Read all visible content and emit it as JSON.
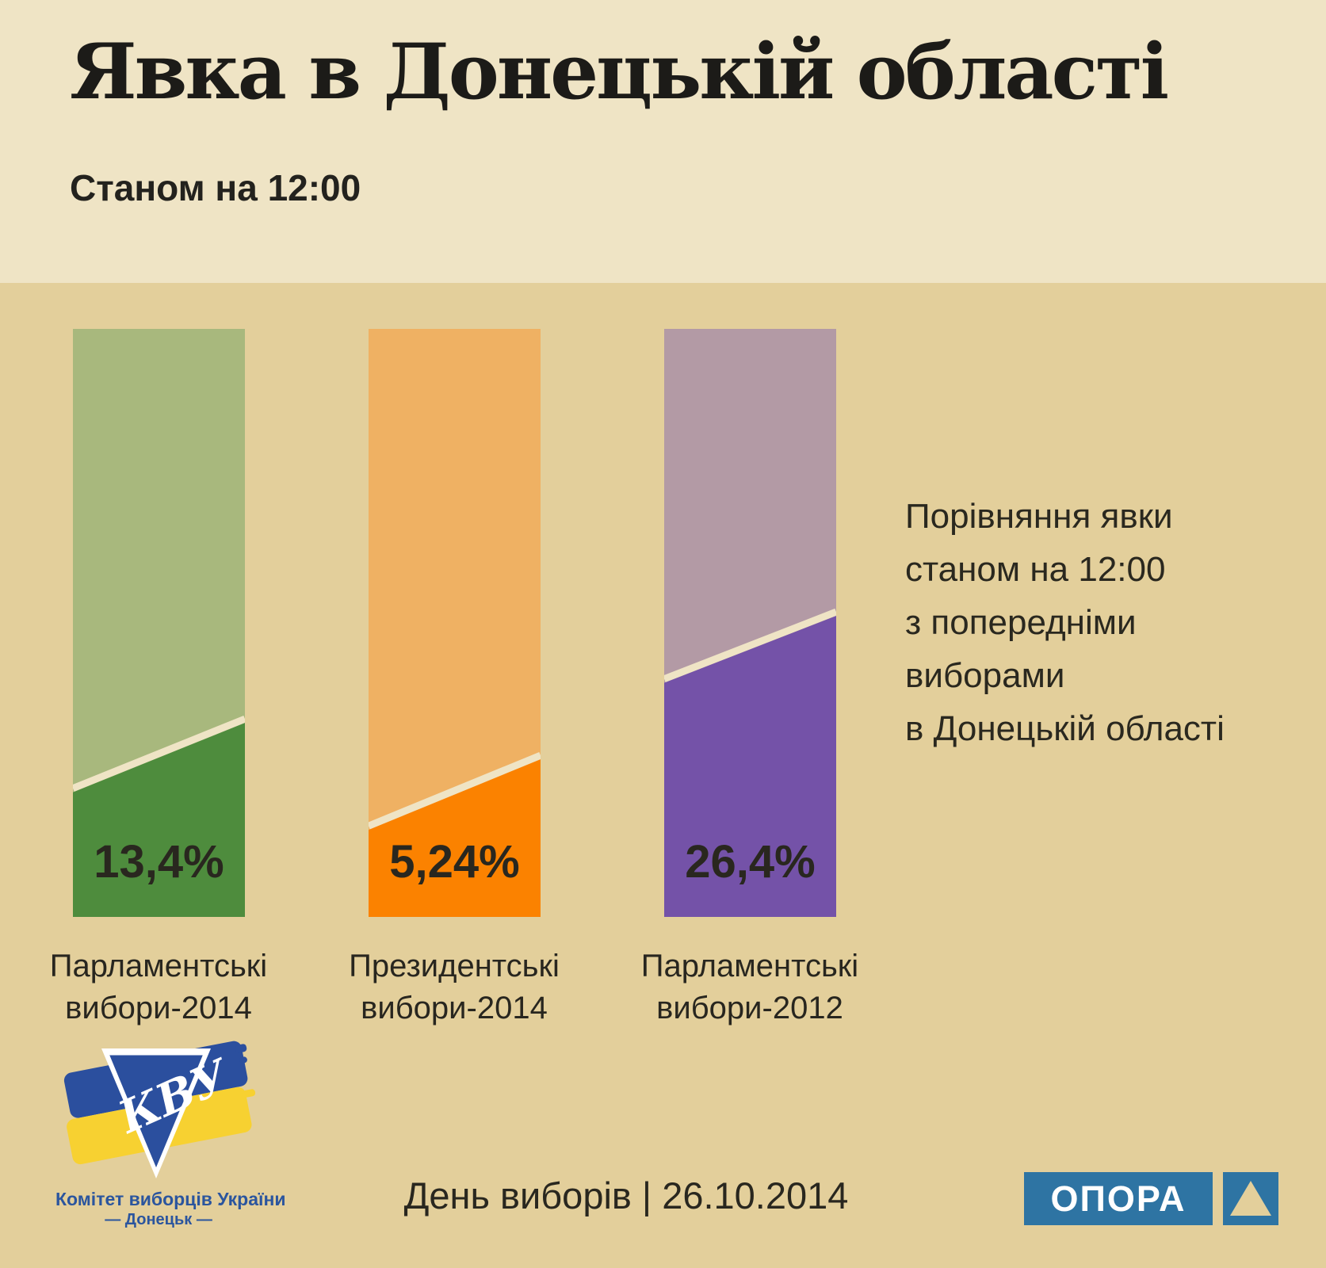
{
  "header": {
    "title": "Явка в Донецькій області",
    "subtitle": "Станом на 12:00"
  },
  "annotation": {
    "text": "Порівняння явки\nстаном на 12:00\nз попередніми\nвиборами\nв Донецькій області"
  },
  "chart_data": {
    "type": "bar",
    "title": "Явка в Донецькій області",
    "subtitle": "Станом на 12:00",
    "unit": "%",
    "note": "Порівняння явки станом на 12:00 з попередніми виборами в Донецькій області",
    "categories": [
      "Парламентські вибори-2014",
      "Президентські вибори-2014",
      "Парламентські вибори-2012"
    ],
    "values": [
      13.4,
      5.24,
      26.4
    ],
    "series": [
      {
        "category_lines": [
          "Парламентські",
          "вибори-2014"
        ],
        "value": 13.4,
        "value_label": "13,4%",
        "light_color": "#a8b87d",
        "dark_color": "#4e8c3d",
        "cut_left_frac": 0.788,
        "cut_right_frac": 0.67
      },
      {
        "category_lines": [
          "Президентські",
          "вибори-2014"
        ],
        "value": 5.24,
        "value_label": "5,24%",
        "light_color": "#efb163",
        "dark_color": "#fb8200",
        "cut_left_frac": 0.852,
        "cut_right_frac": 0.732
      },
      {
        "category_lines": [
          "Парламентські",
          "вибори-2012"
        ],
        "value": 26.4,
        "value_label": "26,4%",
        "light_color": "#b39aa5",
        "dark_color": "#7452a8",
        "cut_left_frac": 0.602,
        "cut_right_frac": 0.488
      }
    ],
    "legend": "none",
    "grid": false
  },
  "footer": {
    "text": "День виборів | 26.10.2014"
  },
  "logos": {
    "kvu": {
      "monogram": "КВУ",
      "caption_line1": "Комітет виборців України",
      "caption_line2": "— Донецьк —"
    },
    "opora": {
      "label": "ОПОРА"
    }
  },
  "colors": {
    "header_bg": "#efe4c5",
    "body_bg": "#e3cf9b",
    "divider": "#efe4c5",
    "text_dark": "#29271f",
    "kvu_blue": "#2b4f9e",
    "kvu_yellow": "#f7d131",
    "opora_blue": "#2e74a3"
  }
}
